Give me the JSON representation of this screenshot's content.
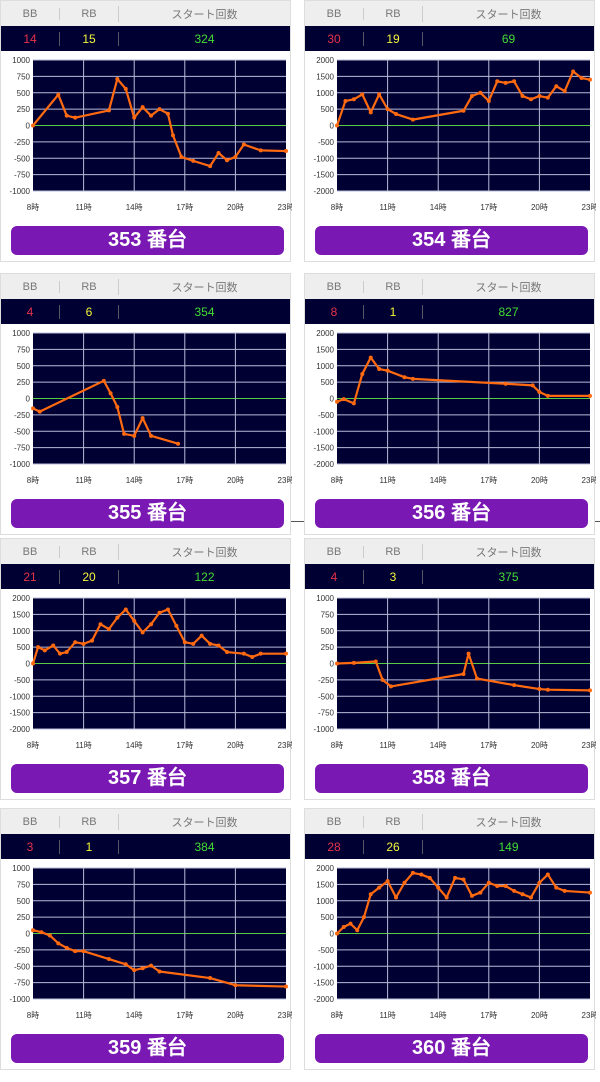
{
  "labels": {
    "bb": "BB",
    "rb": "RB",
    "start": "スタート回数"
  },
  "colors": {
    "plot_bg": "#000033",
    "grid": "#b8bcd8",
    "zero": "#55cc44",
    "series": "#ff6a10",
    "button": "#7a18b4"
  },
  "chart_data": [
    {
      "type": "line",
      "title": "353 番台",
      "bb": "14",
      "rb": "15",
      "start": "324",
      "ylim": [
        -1000,
        1000
      ],
      "yticks": [
        1000,
        750,
        500,
        250,
        0,
        -250,
        -500,
        -750,
        -1000
      ],
      "xticks": [
        "8時",
        "11時",
        "14時",
        "17時",
        "20時",
        "23時"
      ],
      "xlim": [
        8,
        23
      ],
      "points": [
        [
          8,
          0
        ],
        [
          9.5,
          470
        ],
        [
          10,
          150
        ],
        [
          10.5,
          120
        ],
        [
          12.5,
          230
        ],
        [
          13,
          710
        ],
        [
          13.5,
          560
        ],
        [
          14,
          120
        ],
        [
          14.5,
          280
        ],
        [
          15,
          150
        ],
        [
          15.5,
          250
        ],
        [
          16,
          180
        ],
        [
          16.3,
          -150
        ],
        [
          16.8,
          -480
        ],
        [
          17.5,
          -540
        ],
        [
          18.5,
          -620
        ],
        [
          19,
          -420
        ],
        [
          19.5,
          -530
        ],
        [
          20,
          -480
        ],
        [
          20.5,
          -290
        ],
        [
          21.5,
          -380
        ],
        [
          23,
          -390
        ]
      ]
    },
    {
      "type": "line",
      "title": "354 番台",
      "bb": "30",
      "rb": "19",
      "start": "69",
      "ylim": [
        -2000,
        2000
      ],
      "yticks": [
        2000,
        1500,
        1000,
        500,
        0,
        -500,
        -1000,
        -1500,
        -2000
      ],
      "xticks": [
        "8時",
        "11時",
        "14時",
        "17時",
        "20時",
        "23時"
      ],
      "xlim": [
        8,
        23
      ],
      "points": [
        [
          8,
          0
        ],
        [
          8.5,
          750
        ],
        [
          9,
          800
        ],
        [
          9.5,
          950
        ],
        [
          10,
          400
        ],
        [
          10.5,
          950
        ],
        [
          11,
          500
        ],
        [
          11.5,
          350
        ],
        [
          12.5,
          180
        ],
        [
          15.5,
          450
        ],
        [
          16,
          900
        ],
        [
          16.5,
          1000
        ],
        [
          17,
          750
        ],
        [
          17.5,
          1350
        ],
        [
          18,
          1300
        ],
        [
          18.5,
          1350
        ],
        [
          19,
          900
        ],
        [
          19.5,
          800
        ],
        [
          20,
          900
        ],
        [
          20.5,
          850
        ],
        [
          21,
          1200
        ],
        [
          21.5,
          1050
        ],
        [
          22,
          1650
        ],
        [
          22.5,
          1450
        ],
        [
          23,
          1400
        ]
      ]
    },
    {
      "type": "line",
      "title": "355 番台",
      "bb": "4",
      "rb": "6",
      "start": "354",
      "ylim": [
        -1000,
        1000
      ],
      "yticks": [
        1000,
        750,
        500,
        250,
        0,
        -250,
        -500,
        -750,
        -1000
      ],
      "xticks": [
        "8時",
        "11時",
        "14時",
        "17時",
        "20時",
        "23時"
      ],
      "xlim": [
        8,
        23
      ],
      "points": [
        [
          8,
          -150
        ],
        [
          8.4,
          -200
        ],
        [
          12.2,
          270
        ],
        [
          12.6,
          80
        ],
        [
          13,
          -130
        ],
        [
          13.4,
          -540
        ],
        [
          14,
          -570
        ],
        [
          14.5,
          -300
        ],
        [
          15,
          -570
        ],
        [
          16.6,
          -690
        ]
      ]
    },
    {
      "type": "line",
      "title": "356 番台",
      "bb": "8",
      "rb": "1",
      "start": "827",
      "ylim": [
        -2000,
        2000
      ],
      "yticks": [
        2000,
        1500,
        1000,
        500,
        0,
        -500,
        -1000,
        -1500,
        -2000
      ],
      "xticks": [
        "8時",
        "11時",
        "14時",
        "17時",
        "20時",
        "23時"
      ],
      "xlim": [
        8,
        23
      ],
      "points": [
        [
          8,
          -100
        ],
        [
          8.4,
          -20
        ],
        [
          9,
          -150
        ],
        [
          9.5,
          750
        ],
        [
          10,
          1250
        ],
        [
          10.5,
          900
        ],
        [
          11,
          850
        ],
        [
          12,
          650
        ],
        [
          12.5,
          600
        ],
        [
          18,
          450
        ],
        [
          19.6,
          400
        ],
        [
          20,
          200
        ],
        [
          20.5,
          80
        ],
        [
          23,
          80
        ]
      ]
    },
    {
      "type": "line",
      "title": "357 番台",
      "bb": "21",
      "rb": "20",
      "start": "122",
      "ylim": [
        -2000,
        2000
      ],
      "yticks": [
        2000,
        1500,
        1000,
        500,
        0,
        -500,
        -1000,
        -1500,
        -2000
      ],
      "xticks": [
        "8時",
        "11時",
        "14時",
        "17時",
        "20時",
        "23時"
      ],
      "xlim": [
        8,
        23
      ],
      "points": [
        [
          8,
          0
        ],
        [
          8.3,
          500
        ],
        [
          8.7,
          400
        ],
        [
          9.2,
          550
        ],
        [
          9.6,
          300
        ],
        [
          10,
          350
        ],
        [
          10.5,
          650
        ],
        [
          11,
          600
        ],
        [
          11.5,
          700
        ],
        [
          12,
          1200
        ],
        [
          12.5,
          1050
        ],
        [
          13,
          1400
        ],
        [
          13.5,
          1650
        ],
        [
          14,
          1300
        ],
        [
          14.5,
          950
        ],
        [
          15,
          1200
        ],
        [
          15.5,
          1550
        ],
        [
          16,
          1650
        ],
        [
          16.5,
          1150
        ],
        [
          17,
          650
        ],
        [
          17.5,
          600
        ],
        [
          18,
          850
        ],
        [
          18.5,
          600
        ],
        [
          19,
          550
        ],
        [
          19.5,
          350
        ],
        [
          20.5,
          300
        ],
        [
          21,
          200
        ],
        [
          21.5,
          300
        ],
        [
          23,
          300
        ]
      ]
    },
    {
      "type": "line",
      "title": "358 番台",
      "bb": "4",
      "rb": "3",
      "start": "375",
      "ylim": [
        -1000,
        1000
      ],
      "yticks": [
        1000,
        750,
        500,
        250,
        0,
        -250,
        -500,
        -750,
        -1000
      ],
      "xticks": [
        "8時",
        "11時",
        "14時",
        "17時",
        "20時",
        "23時"
      ],
      "xlim": [
        8,
        23
      ],
      "points": [
        [
          8,
          0
        ],
        [
          9,
          10
        ],
        [
          10.3,
          30
        ],
        [
          10.7,
          -250
        ],
        [
          11.2,
          -350
        ],
        [
          15.5,
          -160
        ],
        [
          15.8,
          150
        ],
        [
          16.3,
          -230
        ],
        [
          18.5,
          -330
        ],
        [
          20,
          -390
        ],
        [
          20.5,
          -400
        ],
        [
          23,
          -410
        ]
      ]
    },
    {
      "type": "line",
      "title": "359 番台",
      "bb": "3",
      "rb": "1",
      "start": "384",
      "ylim": [
        -1000,
        1000
      ],
      "yticks": [
        1000,
        750,
        500,
        250,
        0,
        -250,
        -500,
        -750,
        -1000
      ],
      "xticks": [
        "8時",
        "11時",
        "14時",
        "17時",
        "20時",
        "23時"
      ],
      "xlim": [
        8,
        23
      ],
      "points": [
        [
          8,
          50
        ],
        [
          8.5,
          20
        ],
        [
          9,
          -30
        ],
        [
          9.5,
          -150
        ],
        [
          10,
          -220
        ],
        [
          10.5,
          -270
        ],
        [
          11,
          -270
        ],
        [
          12.5,
          -390
        ],
        [
          13.5,
          -470
        ],
        [
          14,
          -560
        ],
        [
          14.5,
          -530
        ],
        [
          15,
          -490
        ],
        [
          15.5,
          -580
        ],
        [
          18.5,
          -680
        ],
        [
          20,
          -790
        ],
        [
          23,
          -810
        ]
      ]
    },
    {
      "type": "line",
      "title": "360 番台",
      "bb": "28",
      "rb": "26",
      "start": "149",
      "ylim": [
        -2000,
        2000
      ],
      "yticks": [
        2000,
        1500,
        1000,
        500,
        0,
        -500,
        -1000,
        -1500,
        -2000
      ],
      "xticks": [
        "8時",
        "11時",
        "14時",
        "17時",
        "20時",
        "23時"
      ],
      "xlim": [
        8,
        23
      ],
      "points": [
        [
          8,
          0
        ],
        [
          8.4,
          200
        ],
        [
          8.8,
          300
        ],
        [
          9.2,
          100
        ],
        [
          9.6,
          500
        ],
        [
          10,
          1200
        ],
        [
          10.5,
          1400
        ],
        [
          11,
          1600
        ],
        [
          11.5,
          1100
        ],
        [
          12,
          1550
        ],
        [
          12.5,
          1850
        ],
        [
          13,
          1800
        ],
        [
          13.5,
          1700
        ],
        [
          14,
          1400
        ],
        [
          14.5,
          1100
        ],
        [
          15,
          1700
        ],
        [
          15.5,
          1650
        ],
        [
          16,
          1150
        ],
        [
          16.5,
          1250
        ],
        [
          17,
          1550
        ],
        [
          17.5,
          1450
        ],
        [
          18,
          1450
        ],
        [
          18.5,
          1300
        ],
        [
          19,
          1200
        ],
        [
          19.5,
          1100
        ],
        [
          20,
          1550
        ],
        [
          20.5,
          1800
        ],
        [
          21,
          1400
        ],
        [
          21.5,
          1300
        ],
        [
          23,
          1250
        ]
      ]
    }
  ]
}
